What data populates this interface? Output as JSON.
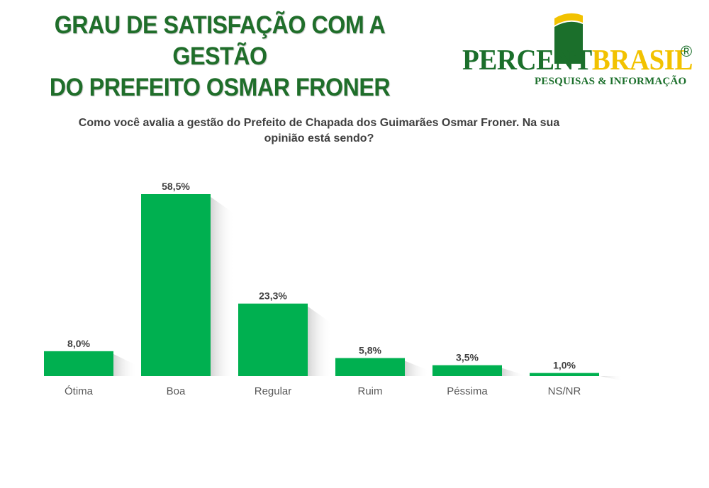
{
  "header": {
    "title_lines": [
      "GRAU DE SATISFAÇÃO COM A GESTÃO",
      "DO PREFEITO OSMAR FRONER"
    ]
  },
  "logo": {
    "word_part1": "PERCENT",
    "word_part2": "BRASIL",
    "registered": "®",
    "tagline": "PESQUISAS & INFORMAÇÃO",
    "colors": {
      "green": "#1b6f2b",
      "yellow": "#f2c200"
    }
  },
  "chart_data": {
    "type": "bar",
    "title": "Como você avalia a gestão do Prefeito de Chapada dos Guimarães Osmar Froner. Na sua opinião está sendo?",
    "title_lines": [
      "Como você avalia a gestão do Prefeito de Chapada dos Guimarães Osmar Froner. Na sua",
      "opinião está sendo?"
    ],
    "categories": [
      "Ótima",
      "Boa",
      "Regular",
      "Ruim",
      "Péssima",
      "NS/NR"
    ],
    "values": [
      8.0,
      58.5,
      23.3,
      5.8,
      3.5,
      1.0
    ],
    "data_labels": [
      "8,0%",
      "58,5%",
      "23,3%",
      "5,8%",
      "3,5%",
      "1,0%"
    ],
    "xlabel": "",
    "ylabel": "",
    "ylim": [
      0,
      58.5
    ],
    "grid": false,
    "legend": "none",
    "bar_color": "#00b050"
  }
}
